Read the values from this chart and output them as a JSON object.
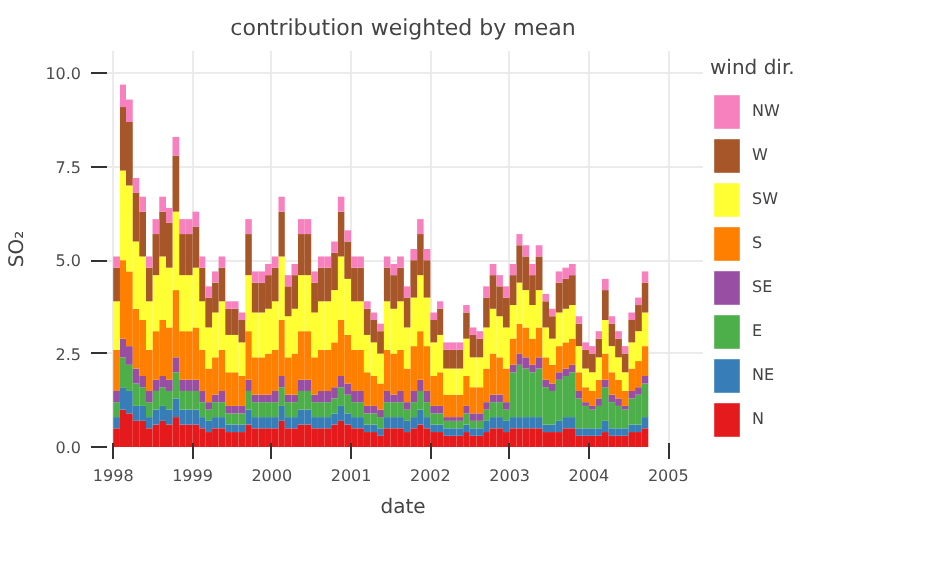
{
  "chart_data": {
    "type": "bar",
    "stacked": true,
    "title": "contribution weighted by mean",
    "xlabel": "date",
    "ylabel": "SO₂",
    "legend_title": "wind dir.",
    "legend": "right",
    "grid": true,
    "x": [
      "1998-01",
      "1998-02",
      "1998-03",
      "1998-04",
      "1998-05",
      "1998-06",
      "1998-07",
      "1998-08",
      "1998-09",
      "1998-10",
      "1998-11",
      "1998-12",
      "1999-01",
      "1999-02",
      "1999-03",
      "1999-04",
      "1999-05",
      "1999-06",
      "1999-07",
      "1999-08",
      "1999-09",
      "1999-10",
      "1999-11",
      "1999-12",
      "2000-01",
      "2000-02",
      "2000-03",
      "2000-04",
      "2000-05",
      "2000-06",
      "2000-07",
      "2000-08",
      "2000-09",
      "2000-10",
      "2000-11",
      "2000-12",
      "2001-01",
      "2001-02",
      "2001-03",
      "2001-04",
      "2001-05",
      "2001-06",
      "2001-07",
      "2001-08",
      "2001-09",
      "2001-10",
      "2001-11",
      "2001-12",
      "2002-01",
      "2002-02",
      "2002-03",
      "2002-04",
      "2002-05",
      "2002-06",
      "2002-07",
      "2002-08",
      "2002-09",
      "2002-10",
      "2002-11",
      "2002-12",
      "2003-01",
      "2003-02",
      "2003-03",
      "2003-04",
      "2003-05",
      "2003-06",
      "2003-07",
      "2003-08",
      "2003-09",
      "2003-10",
      "2003-11",
      "2003-12",
      "2004-01",
      "2004-02",
      "2004-03",
      "2004-04",
      "2004-05",
      "2004-06",
      "2004-07",
      "2004-08",
      "2004-09"
    ],
    "xlim": [
      "1997-11-15",
      "2005-06-10"
    ],
    "xticks": [
      "1998",
      "1999",
      "2000",
      "2001",
      "2002",
      "2003",
      "2004",
      "2005"
    ],
    "ylim": [
      0,
      10.6
    ],
    "yticks": [
      {
        "value": 0,
        "label": "0.0"
      },
      {
        "value": 2.5,
        "label": "2.5"
      },
      {
        "value": 5,
        "label": "5.0"
      },
      {
        "value": 7.5,
        "label": "7.5"
      },
      {
        "value": 10,
        "label": "10.0"
      }
    ],
    "series": [
      {
        "name": "N",
        "color": "#e41a1c",
        "values": [
          0.5,
          1.0,
          0.9,
          0.7,
          0.7,
          0.5,
          0.6,
          0.7,
          0.6,
          0.8,
          0.6,
          0.6,
          0.6,
          0.5,
          0.4,
          0.5,
          0.5,
          0.4,
          0.4,
          0.4,
          0.6,
          0.5,
          0.5,
          0.5,
          0.5,
          0.7,
          0.5,
          0.5,
          0.6,
          0.6,
          0.5,
          0.5,
          0.5,
          0.6,
          0.7,
          0.6,
          0.5,
          0.5,
          0.4,
          0.4,
          0.3,
          0.5,
          0.5,
          0.5,
          0.4,
          0.5,
          0.6,
          0.5,
          0.4,
          0.4,
          0.3,
          0.3,
          0.3,
          0.4,
          0.3,
          0.3,
          0.4,
          0.5,
          0.5,
          0.4,
          0.5,
          0.5,
          0.5,
          0.5,
          0.5,
          0.4,
          0.4,
          0.4,
          0.5,
          0.5,
          0.3,
          0.3,
          0.3,
          0.3,
          0.4,
          0.3,
          0.3,
          0.3,
          0.4,
          0.4,
          0.5
        ]
      },
      {
        "name": "NE",
        "color": "#377eb8",
        "values": [
          0.3,
          0.6,
          0.6,
          0.4,
          0.4,
          0.3,
          0.4,
          0.4,
          0.4,
          0.5,
          0.4,
          0.4,
          0.4,
          0.3,
          0.3,
          0.3,
          0.3,
          0.2,
          0.2,
          0.2,
          0.4,
          0.3,
          0.3,
          0.3,
          0.3,
          0.4,
          0.3,
          0.3,
          0.4,
          0.4,
          0.3,
          0.3,
          0.3,
          0.3,
          0.4,
          0.3,
          0.3,
          0.3,
          0.2,
          0.2,
          0.2,
          0.3,
          0.3,
          0.3,
          0.3,
          0.3,
          0.4,
          0.3,
          0.2,
          0.2,
          0.2,
          0.2,
          0.2,
          0.2,
          0.2,
          0.2,
          0.3,
          0.3,
          0.3,
          0.3,
          0.3,
          0.3,
          0.3,
          0.3,
          0.3,
          0.2,
          0.2,
          0.3,
          0.3,
          0.3,
          0.2,
          0.2,
          0.2,
          0.2,
          0.3,
          0.2,
          0.2,
          0.2,
          0.2,
          0.2,
          0.3
        ]
      },
      {
        "name": "E",
        "color": "#4daf4a",
        "values": [
          0.4,
          0.8,
          0.7,
          0.6,
          0.5,
          0.4,
          0.5,
          0.5,
          0.5,
          0.7,
          0.5,
          0.5,
          0.5,
          0.4,
          0.3,
          0.4,
          0.4,
          0.3,
          0.3,
          0.3,
          0.5,
          0.4,
          0.4,
          0.4,
          0.4,
          0.5,
          0.4,
          0.4,
          0.5,
          0.5,
          0.4,
          0.4,
          0.4,
          0.4,
          0.5,
          0.5,
          0.4,
          0.4,
          0.3,
          0.3,
          0.3,
          0.4,
          0.4,
          0.4,
          0.3,
          0.4,
          0.5,
          0.4,
          0.3,
          0.3,
          0.2,
          0.2,
          0.2,
          0.3,
          0.2,
          0.2,
          0.3,
          0.4,
          0.4,
          0.3,
          1.2,
          1.4,
          1.3,
          1.2,
          1.3,
          1.0,
          0.9,
          1.1,
          1.1,
          1.2,
          0.8,
          0.6,
          0.5,
          0.6,
          0.9,
          0.7,
          0.6,
          0.5,
          0.7,
          0.8,
          0.9
        ]
      },
      {
        "name": "SE",
        "color": "#984ea3",
        "values": [
          0.3,
          0.5,
          0.5,
          0.4,
          0.3,
          0.3,
          0.3,
          0.3,
          0.3,
          0.4,
          0.3,
          0.3,
          0.3,
          0.3,
          0.2,
          0.2,
          0.3,
          0.2,
          0.2,
          0.2,
          0.3,
          0.2,
          0.2,
          0.2,
          0.3,
          0.3,
          0.2,
          0.2,
          0.3,
          0.3,
          0.2,
          0.3,
          0.3,
          0.3,
          0.3,
          0.3,
          0.3,
          0.3,
          0.2,
          0.2,
          0.2,
          0.3,
          0.2,
          0.3,
          0.2,
          0.3,
          0.3,
          0.3,
          0.2,
          0.2,
          0.1,
          0.1,
          0.1,
          0.2,
          0.2,
          0.2,
          0.2,
          0.2,
          0.2,
          0.2,
          0.2,
          0.3,
          0.3,
          0.2,
          0.3,
          0.2,
          0.2,
          0.2,
          0.2,
          0.2,
          0.2,
          0.1,
          0.1,
          0.2,
          0.2,
          0.2,
          0.2,
          0.1,
          0.2,
          0.2,
          0.2
        ]
      },
      {
        "name": "S",
        "color": "#ff7f00",
        "values": [
          1.1,
          2.1,
          2.0,
          1.6,
          1.5,
          1.1,
          1.3,
          1.5,
          1.4,
          1.8,
          1.3,
          1.3,
          1.4,
          1.1,
          0.9,
          1.0,
          1.1,
          0.9,
          0.9,
          0.8,
          1.3,
          1.0,
          1.0,
          1.1,
          1.1,
          1.5,
          1.0,
          1.1,
          1.3,
          1.3,
          1.0,
          1.1,
          1.1,
          1.2,
          1.5,
          1.3,
          1.1,
          1.1,
          0.9,
          0.8,
          0.7,
          1.1,
          1.1,
          1.1,
          0.9,
          1.2,
          1.3,
          1.2,
          0.8,
          0.9,
          0.6,
          0.6,
          0.6,
          0.8,
          0.7,
          0.7,
          0.9,
          1.1,
          1.0,
          0.9,
          0.7,
          0.8,
          0.8,
          0.7,
          0.8,
          0.6,
          0.5,
          0.7,
          0.7,
          0.7,
          0.5,
          0.4,
          0.4,
          0.5,
          0.7,
          0.6,
          0.5,
          0.4,
          0.6,
          0.7,
          0.8
        ]
      },
      {
        "name": "SW",
        "color": "#ffff33",
        "values": [
          1.3,
          2.4,
          2.3,
          1.8,
          1.7,
          1.3,
          1.5,
          1.7,
          1.6,
          2.1,
          1.5,
          1.5,
          1.6,
          1.3,
          1.1,
          1.2,
          1.3,
          1.0,
          1.0,
          0.9,
          1.5,
          1.2,
          1.2,
          1.2,
          1.3,
          1.7,
          1.1,
          1.2,
          1.5,
          1.5,
          1.2,
          1.3,
          1.3,
          1.4,
          1.7,
          1.5,
          1.3,
          1.3,
          1.0,
          0.9,
          0.8,
          1.3,
          1.2,
          1.3,
          1.1,
          1.3,
          1.5,
          1.3,
          0.9,
          1.0,
          0.7,
          0.7,
          0.7,
          1.0,
          0.8,
          0.8,
          1.1,
          1.2,
          1.1,
          1.1,
          0.9,
          1.1,
          1.0,
          0.9,
          1.0,
          0.8,
          0.7,
          0.9,
          0.9,
          0.9,
          0.7,
          0.5,
          0.5,
          0.6,
          0.9,
          0.7,
          0.6,
          0.5,
          0.7,
          0.8,
          0.9
        ]
      },
      {
        "name": "W",
        "color": "#a65628",
        "values": [
          0.9,
          1.7,
          1.7,
          1.3,
          1.2,
          0.9,
          1.1,
          1.2,
          1.2,
          1.5,
          1.1,
          1.1,
          1.1,
          0.9,
          0.8,
          0.8,
          0.9,
          0.7,
          0.7,
          0.6,
          1.1,
          0.8,
          0.8,
          0.9,
          0.9,
          1.2,
          0.8,
          0.9,
          1.1,
          1.1,
          0.8,
          0.9,
          0.9,
          1.0,
          1.2,
          1.0,
          0.9,
          0.9,
          0.7,
          0.6,
          0.6,
          0.9,
          0.9,
          0.9,
          0.8,
          1.0,
          1.1,
          1.0,
          0.6,
          0.7,
          0.5,
          0.5,
          0.5,
          0.7,
          0.6,
          0.5,
          0.8,
          0.9,
          0.8,
          0.8,
          0.8,
          1.0,
          0.9,
          0.8,
          0.9,
          0.7,
          0.6,
          0.8,
          0.8,
          0.8,
          0.6,
          0.5,
          0.5,
          0.5,
          0.8,
          0.6,
          0.5,
          0.5,
          0.6,
          0.7,
          0.8
        ]
      },
      {
        "name": "NW",
        "color": "#f781bf",
        "values": [
          0.3,
          0.6,
          0.6,
          0.4,
          0.4,
          0.3,
          0.4,
          0.4,
          0.4,
          0.5,
          0.4,
          0.4,
          0.4,
          0.3,
          0.3,
          0.3,
          0.3,
          0.2,
          0.2,
          0.2,
          0.4,
          0.3,
          0.3,
          0.3,
          0.3,
          0.4,
          0.3,
          0.3,
          0.4,
          0.4,
          0.3,
          0.3,
          0.3,
          0.3,
          0.4,
          0.3,
          0.3,
          0.3,
          0.2,
          0.2,
          0.2,
          0.3,
          0.3,
          0.3,
          0.3,
          0.3,
          0.4,
          0.3,
          0.2,
          0.2,
          0.2,
          0.2,
          0.2,
          0.2,
          0.2,
          0.2,
          0.3,
          0.3,
          0.3,
          0.3,
          0.3,
          0.3,
          0.3,
          0.3,
          0.3,
          0.2,
          0.2,
          0.3,
          0.3,
          0.3,
          0.2,
          0.2,
          0.2,
          0.2,
          0.3,
          0.2,
          0.2,
          0.2,
          0.2,
          0.2,
          0.3
        ]
      }
    ]
  }
}
